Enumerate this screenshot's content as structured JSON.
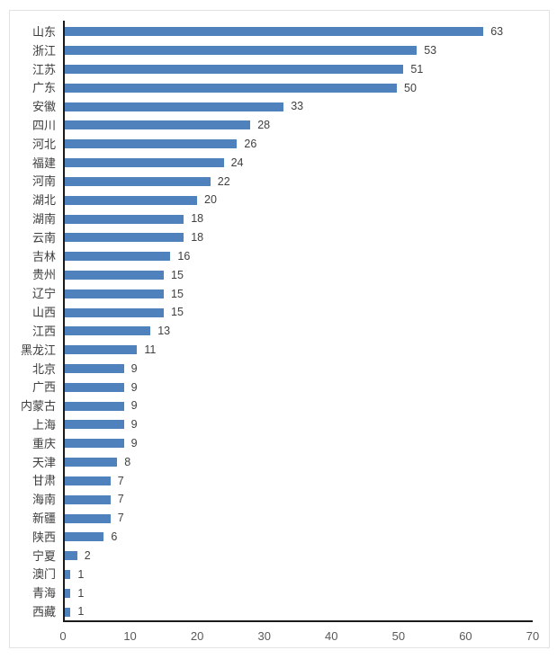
{
  "chart_data": {
    "type": "bar",
    "orientation": "horizontal",
    "title": "",
    "xlabel": "",
    "ylabel": "",
    "categories": [
      "山东",
      "浙江",
      "江苏",
      "广东",
      "安徽",
      "四川",
      "河北",
      "福建",
      "河南",
      "湖北",
      "湖南",
      "云南",
      "吉林",
      "贵州",
      "辽宁",
      "山西",
      "江西",
      "黑龙江",
      "北京",
      "广西",
      "内蒙古",
      "上海",
      "重庆",
      "天津",
      "甘肃",
      "海南",
      "新疆",
      "陕西",
      "宁夏",
      "澳门",
      "青海",
      "西藏"
    ],
    "values": [
      63,
      53,
      51,
      50,
      33,
      28,
      26,
      24,
      22,
      20,
      18,
      18,
      16,
      15,
      15,
      15,
      13,
      11,
      9,
      9,
      9,
      9,
      9,
      8,
      7,
      7,
      7,
      6,
      2,
      1,
      1,
      1
    ],
    "xlim": [
      0,
      70
    ],
    "x_ticks": [
      0,
      10,
      20,
      30,
      40,
      50,
      60,
      70
    ],
    "grid": false,
    "legend": false,
    "data_labels": true,
    "colors": {
      "bar": "#4f81bd",
      "axis_line": "#1a1a1a",
      "category_label": "#3d3d3d",
      "value_label": "#404040",
      "tick_label": "#595959",
      "panel_border": "#e2e2e2",
      "background": "#ffffff"
    }
  }
}
